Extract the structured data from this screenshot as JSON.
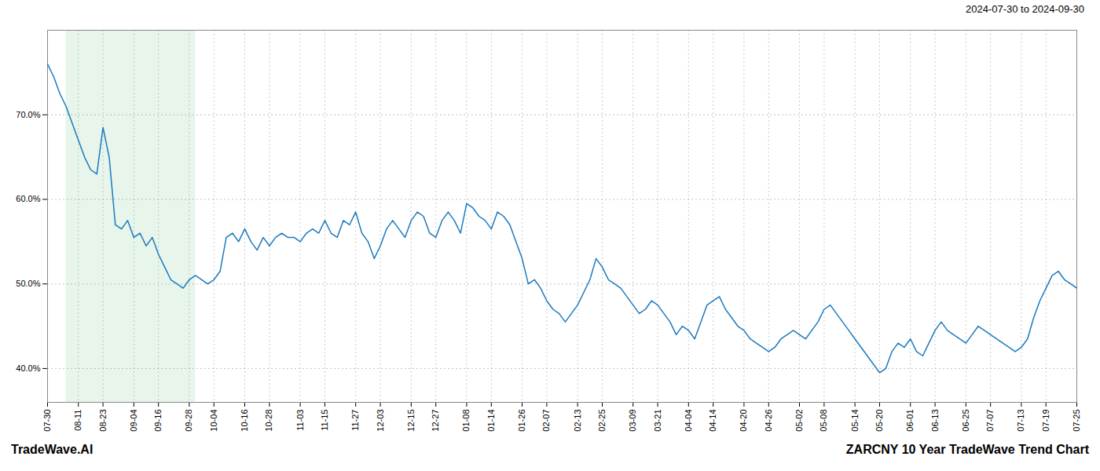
{
  "chart_data": {
    "type": "line",
    "title": "ZARCNY 10 Year TradeWave Trend Chart",
    "subtitle": "2024-07-30 to 2024-09-30",
    "annotations": [
      "TradeWave.AI"
    ],
    "color": "#1a7abf",
    "grid": true,
    "ylim": [
      36,
      80
    ],
    "yticks": [
      {
        "value": 40,
        "label": "40.0%"
      },
      {
        "value": 50,
        "label": "50.0%"
      },
      {
        "value": 60,
        "label": "60.0%"
      },
      {
        "value": 70,
        "label": "70.0%"
      }
    ],
    "shaded_region": {
      "start": 3,
      "end": 24,
      "color": "#d4edda"
    },
    "categories": [
      "07-30",
      null,
      null,
      null,
      null,
      "08-11",
      null,
      null,
      null,
      "08-23",
      null,
      null,
      null,
      null,
      "09-04",
      null,
      null,
      null,
      "09-16",
      null,
      null,
      null,
      null,
      "09-28",
      null,
      null,
      null,
      "10-04",
      null,
      null,
      null,
      null,
      "10-16",
      null,
      null,
      null,
      "10-28",
      null,
      null,
      null,
      null,
      "11-03",
      null,
      null,
      null,
      "11-15",
      null,
      null,
      null,
      null,
      "11-27",
      null,
      null,
      null,
      "12-03",
      null,
      null,
      null,
      null,
      "12-15",
      null,
      null,
      null,
      "12-27",
      null,
      null,
      null,
      null,
      "01-08",
      null,
      null,
      null,
      "01-14",
      null,
      null,
      null,
      null,
      "01-26",
      null,
      null,
      null,
      "02-07",
      null,
      null,
      null,
      null,
      "02-13",
      null,
      null,
      null,
      "02-25",
      null,
      null,
      null,
      null,
      "03-09",
      null,
      null,
      null,
      "03-21",
      null,
      null,
      null,
      null,
      "04-04",
      null,
      null,
      null,
      "04-14",
      null,
      null,
      null,
      null,
      "04-20",
      null,
      null,
      null,
      "04-26",
      null,
      null,
      null,
      null,
      "05-02",
      null,
      null,
      null,
      "05-08",
      null,
      null,
      null,
      null,
      "05-14",
      null,
      null,
      null,
      "05-20",
      null,
      null,
      null,
      null,
      "06-01",
      null,
      null,
      null,
      "06-13",
      null,
      null,
      null,
      null,
      "06-25",
      null,
      null,
      null,
      "07-07",
      null,
      null,
      null,
      null,
      "07-13",
      null,
      null,
      null,
      "07-19",
      null,
      null,
      null,
      null,
      "07-25"
    ],
    "values": [
      76.0,
      74.5,
      72.5,
      71.0,
      69.0,
      67.0,
      65.0,
      63.5,
      63.0,
      68.5,
      65.0,
      57.0,
      56.5,
      57.5,
      55.5,
      56.0,
      54.5,
      55.5,
      53.5,
      52.0,
      50.5,
      50.0,
      49.5,
      50.5,
      51.0,
      50.5,
      50.0,
      50.5,
      51.5,
      55.5,
      56.0,
      55.0,
      56.5,
      55.0,
      54.0,
      55.5,
      54.5,
      55.5,
      56.0,
      55.5,
      55.5,
      55.0,
      56.0,
      56.5,
      56.0,
      57.5,
      56.0,
      55.5,
      57.5,
      57.0,
      58.5,
      56.0,
      55.0,
      53.0,
      54.5,
      56.5,
      57.5,
      56.5,
      55.5,
      57.5,
      58.5,
      58.0,
      56.0,
      55.5,
      57.5,
      58.5,
      57.5,
      56.0,
      59.5,
      59.0,
      58.0,
      57.5,
      56.5,
      58.5,
      58.0,
      57.0,
      55.0,
      53.0,
      50.0,
      50.5,
      49.5,
      48.0,
      47.0,
      46.5,
      45.5,
      46.5,
      47.5,
      49.0,
      50.5,
      53.0,
      52.0,
      50.5,
      50.0,
      49.5,
      48.5,
      47.5,
      46.5,
      47.0,
      48.0,
      47.5,
      46.5,
      45.5,
      44.0,
      45.0,
      44.5,
      43.5,
      45.5,
      47.5,
      48.0,
      48.5,
      47.0,
      46.0,
      45.0,
      44.5,
      43.5,
      43.0,
      42.5,
      42.0,
      42.5,
      43.5,
      44.0,
      44.5,
      44.0,
      43.5,
      44.5,
      45.5,
      47.0,
      47.5,
      46.5,
      45.5,
      44.5,
      43.5,
      42.5,
      41.5,
      40.5,
      39.5,
      40.0,
      42.0,
      43.0,
      42.5,
      43.5,
      42.0,
      41.5,
      43.0,
      44.5,
      45.5,
      44.5,
      44.0,
      43.5,
      43.0,
      44.0,
      45.0,
      44.5,
      44.0,
      43.5,
      43.0,
      42.5,
      42.0,
      42.5,
      43.5,
      46.0,
      48.0,
      49.5,
      51.0,
      51.5,
      50.5,
      50.0,
      49.5
    ]
  }
}
